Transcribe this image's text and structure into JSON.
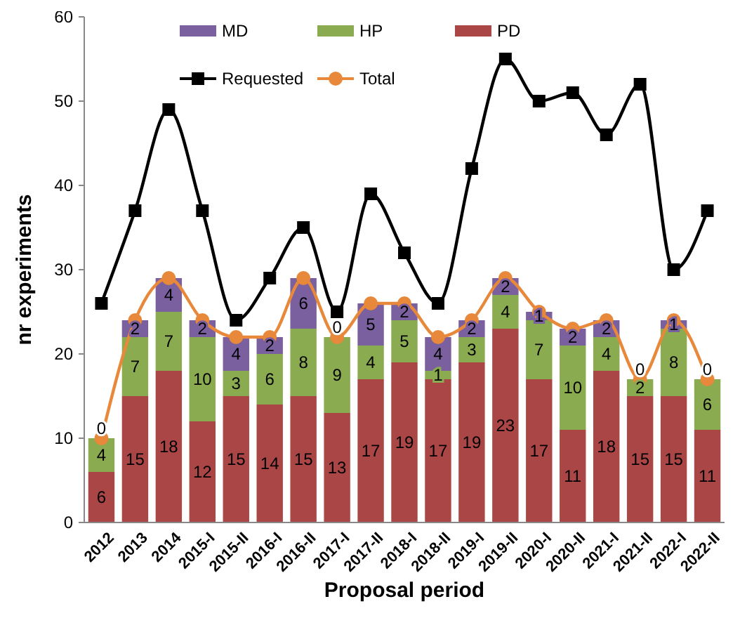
{
  "chart_data": {
    "type": "bar",
    "stacked": true,
    "xlabel": "Proposal period",
    "ylabel": "nr experiments",
    "categories": [
      "2012",
      "2013",
      "2014",
      "2015-I",
      "2015-II",
      "2016-I",
      "2016-II",
      "2017-I",
      "2017-II",
      "2018-I",
      "2018-II",
      "2019-I",
      "2019-II",
      "2020-I",
      "2020-II",
      "2021-I",
      "2021-II",
      "2022-I",
      "2022-II"
    ],
    "series": [
      {
        "name": "PD",
        "color": "#ab4646",
        "values": [
          6,
          15,
          18,
          12,
          15,
          14,
          15,
          13,
          17,
          19,
          17,
          19,
          23,
          17,
          11,
          18,
          15,
          15,
          11
        ],
        "value_labels": [
          "6",
          "15",
          "18",
          "12",
          "15",
          "14",
          "15",
          "13",
          "17",
          "19",
          "17",
          "19",
          "23",
          "17",
          "11",
          "18",
          "15",
          "15",
          "11"
        ]
      },
      {
        "name": "HP",
        "color": "#8aab4f",
        "values": [
          4,
          7,
          7,
          10,
          3,
          6,
          8,
          9,
          4,
          5,
          1,
          3,
          4,
          7,
          10,
          4,
          2,
          8,
          6
        ],
        "value_labels": [
          "4",
          "7",
          "7",
          "10",
          "3",
          "6",
          "8",
          "9",
          "4",
          "5",
          "1",
          "3",
          "4",
          "7",
          "10",
          "4",
          "2",
          "8",
          "6"
        ]
      },
      {
        "name": "MD",
        "color": "#7b60a0",
        "values": [
          0,
          2,
          4,
          2,
          4,
          2,
          6,
          0,
          5,
          2,
          4,
          2,
          2,
          1,
          2,
          2,
          0,
          1,
          0
        ],
        "value_labels": [
          "0",
          "2",
          "4",
          "2",
          "4",
          "2",
          "6",
          "0",
          "5",
          "2",
          "4",
          "2",
          "2",
          "1",
          "2",
          "2",
          "0",
          "1",
          "0"
        ]
      },
      {
        "name": "Requested",
        "type": "line",
        "color": "#000000",
        "marker": "square",
        "values": [
          26,
          37,
          49,
          37,
          24,
          29,
          35,
          25,
          39,
          32,
          26,
          42,
          55,
          50,
          51,
          46,
          52,
          30,
          37
        ]
      },
      {
        "name": "Total",
        "type": "line",
        "color": "#e8883a",
        "marker": "circle",
        "values": [
          10,
          24,
          29,
          24,
          22,
          22,
          29,
          22,
          26,
          26,
          22,
          24,
          29,
          25,
          23,
          24,
          17,
          24,
          17
        ]
      }
    ],
    "ylim": [
      0,
      60
    ],
    "yticks": [
      0,
      10,
      20,
      30,
      40,
      50,
      60
    ],
    "grid": false,
    "legend": "top"
  }
}
